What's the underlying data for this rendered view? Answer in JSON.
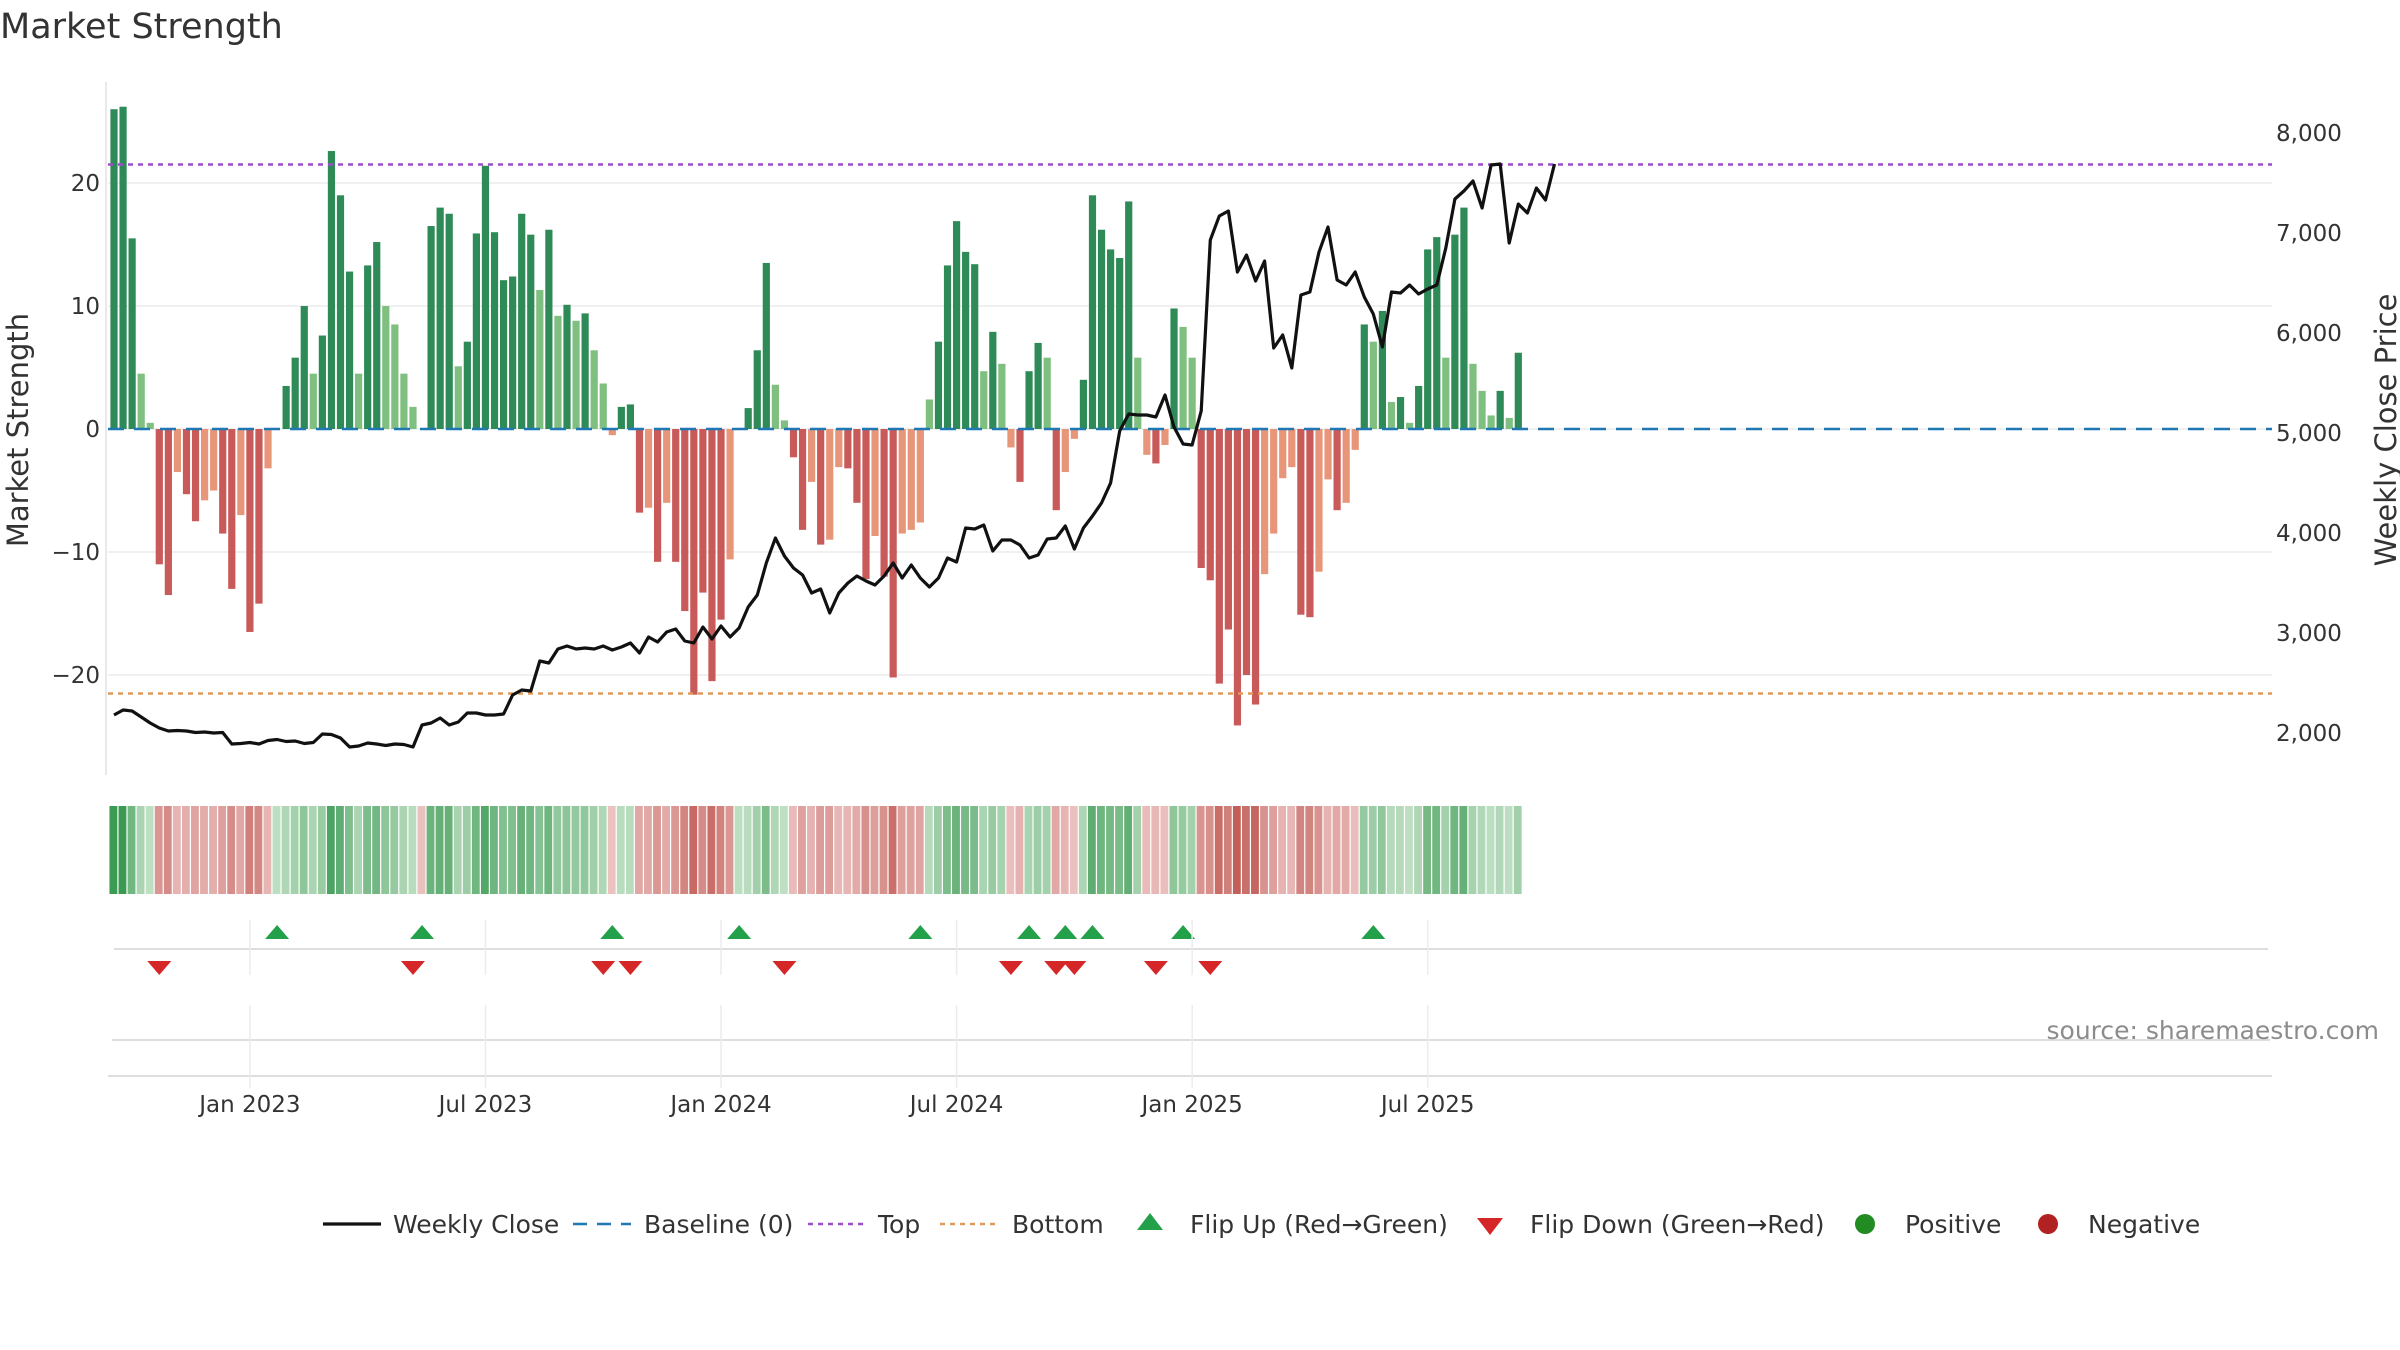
{
  "title": "Market Strength",
  "source": "source: sharemaestro.com",
  "chart_data": {
    "type": "bar",
    "title": "Market Strength",
    "ylabel_left": "Market Strength",
    "ylabel_right": "Weekly Close Price",
    "left_yticks": [
      20,
      10,
      0,
      -10,
      -20
    ],
    "left_ytick_labels": [
      "20",
      "10",
      "0",
      "−10",
      "−20"
    ],
    "left_ylim": [
      -28,
      28
    ],
    "right_yticks": [
      8000,
      7000,
      6000,
      5000,
      4000,
      3000,
      2000
    ],
    "right_ytick_labels": [
      "8,000",
      "7,000",
      "6,000",
      "5,000",
      "4,000",
      "3,000",
      "2,000"
    ],
    "right_ylim": [
      1500,
      8600
    ],
    "x_ticks": [
      "Jan 2023",
      "Jul 2023",
      "Jan 2024",
      "Jul 2024",
      "Jan 2025",
      "Jul 2025"
    ],
    "top_level": 21.5,
    "bottom_level": -21.5,
    "grid": true,
    "legend_position": "bottom",
    "strength_values": [
      26,
      26.2,
      15.5,
      4.5,
      0.5,
      -11,
      -13.5,
      -3.5,
      -5.3,
      -7.5,
      -5.8,
      -5,
      -8.5,
      -13,
      -7,
      -16.5,
      -14.2,
      -3.2,
      0,
      3.5,
      5.8,
      10,
      4.5,
      7.6,
      22.6,
      19,
      12.8,
      4.5,
      13.3,
      15.2,
      10,
      8.5,
      4.5,
      1.8,
      0,
      16.5,
      18,
      17.5,
      5.1,
      7.1,
      15.9,
      21.4,
      16,
      12.1,
      12.4,
      17.5,
      15.8,
      11.3,
      16.2,
      9.2,
      10.1,
      8.8,
      9.4,
      6.4,
      3.7,
      -0.5,
      1.8,
      2,
      -6.8,
      -6.4,
      -10.8,
      -6,
      -10.8,
      -14.8,
      -21.6,
      -13.3,
      -20.5,
      -15.5,
      -10.6,
      0,
      1.7,
      6.4,
      13.5,
      3.6,
      0.7,
      -2.3,
      -8.2,
      -4.3,
      -9.4,
      -9,
      -3.1,
      -3.2,
      -6,
      -12.2,
      -8.7,
      -12,
      -20.2,
      -8.5,
      -8.2,
      -7.6,
      2.4,
      7.1,
      13.3,
      16.9,
      14.4,
      13.4,
      4.7,
      7.9,
      5.3,
      -1.5,
      -4.3,
      4.7,
      7,
      5.8,
      -6.6,
      -3.5,
      -0.8,
      4,
      19,
      16.2,
      14.6,
      13.9,
      18.5,
      5.8,
      -2.1,
      -2.8,
      -1.3,
      9.8,
      8.3,
      5.8,
      -11.3,
      -12.3,
      -20.7,
      -16.3,
      -24.1,
      -20,
      -22.4,
      -11.8,
      -8.5,
      -4,
      -3.1,
      -15.1,
      -15.3,
      -11.6,
      -4.1,
      -6.6,
      -6,
      -1.7,
      8.5,
      7.1,
      9.6,
      2.2,
      2.6,
      0.5,
      3.5,
      14.6,
      15.6,
      5.8,
      15.8,
      18,
      5.3,
      3.1,
      1.1,
      3.1,
      0.9,
      6.2
    ],
    "weekly_close": [
      2180,
      2230,
      2220,
      2160,
      2100,
      2050,
      2020,
      2025,
      2020,
      2005,
      2010,
      2000,
      2005,
      1890,
      1895,
      1905,
      1890,
      1925,
      1935,
      1915,
      1920,
      1895,
      1905,
      1990,
      1985,
      1950,
      1860,
      1870,
      1900,
      1890,
      1875,
      1890,
      1885,
      1860,
      2080,
      2100,
      2150,
      2080,
      2110,
      2200,
      2200,
      2180,
      2180,
      2190,
      2380,
      2430,
      2420,
      2720,
      2700,
      2840,
      2870,
      2840,
      2850,
      2840,
      2870,
      2830,
      2860,
      2900,
      2800,
      2960,
      2910,
      3010,
      3040,
      2920,
      2900,
      3060,
      2940,
      3070,
      2960,
      3050,
      3260,
      3380,
      3700,
      3950,
      3770,
      3650,
      3580,
      3400,
      3440,
      3200,
      3400,
      3500,
      3570,
      3520,
      3480,
      3570,
      3700,
      3550,
      3680,
      3550,
      3460,
      3550,
      3750,
      3710,
      4050,
      4040,
      4080,
      3820,
      3930,
      3930,
      3880,
      3750,
      3780,
      3940,
      3950,
      4070,
      3840,
      4050,
      4170,
      4300,
      4500,
      5020,
      5190,
      5180,
      5180,
      5160,
      5380,
      5060,
      4890,
      4880,
      5220,
      6930,
      7170,
      7220,
      6610,
      6780,
      6520,
      6720,
      5850,
      5980,
      5650,
      6380,
      6410,
      6810,
      7060,
      6530,
      6480,
      6610,
      6360,
      6190,
      5860,
      6410,
      6400,
      6480,
      6390,
      6440,
      6480,
      6850,
      7340,
      7420,
      7520,
      7250,
      7680,
      7690,
      6900,
      7290,
      7200,
      7450,
      7330,
      7690
    ],
    "color_strip_values": [
      26,
      26.2,
      15.5,
      4.5,
      0.5,
      -11,
      -13.5,
      -3.5,
      -5.3,
      -7.5,
      -5.8,
      -5,
      -8.5,
      -13,
      -7,
      -16.5,
      -14.2,
      -3.2,
      1,
      3.5,
      5.8,
      10,
      4.5,
      7.6,
      22.6,
      19,
      12.8,
      4.5,
      13.3,
      15.2,
      10,
      8.5,
      4.5,
      1.8,
      -1,
      16.5,
      18,
      17.5,
      5.1,
      7.1,
      15.9,
      21.4,
      16,
      12.1,
      12.4,
      17.5,
      15.8,
      11.3,
      16.2,
      9.2,
      10.1,
      8.8,
      9.4,
      6.4,
      3.7,
      -0.5,
      1.8,
      2,
      -6.8,
      -6.4,
      -10.8,
      -6,
      -10.8,
      -14.8,
      -21.6,
      -13.3,
      -20.5,
      -15.5,
      -10.6,
      1,
      1.7,
      6.4,
      13.5,
      3.6,
      0.7,
      -2.3,
      -8.2,
      -4.3,
      -9.4,
      -9,
      -3.1,
      -3.2,
      -6,
      -12.2,
      -8.7,
      -12,
      -20.2,
      -8.5,
      -8.2,
      -7.6,
      2.4,
      7.1,
      13.3,
      16.9,
      14.4,
      13.4,
      4.7,
      7.9,
      5.3,
      -1.5,
      -4.3,
      4.7,
      7,
      5.8,
      -6.6,
      -3.5,
      -0.8,
      4,
      19,
      16.2,
      14.6,
      13.9,
      18.5,
      5.8,
      -2.1,
      -2.8,
      -1.3,
      9.8,
      8.3,
      5.8,
      -11.3,
      -12.3,
      -20.7,
      -16.3,
      -24.1,
      -20,
      -22.4,
      -11.8,
      -8.5,
      -4,
      -3.1,
      -15.1,
      -15.3,
      -11.6,
      -4.1,
      -6.6,
      -6,
      -1.7,
      8.5,
      7.1,
      9.6,
      2.2,
      2.6,
      0.5,
      3.5,
      14.6,
      15.6,
      5.8,
      15.8,
      18,
      5.3,
      3.1,
      1.1,
      3.1,
      0.9,
      6.2
    ],
    "flip_up_weeks": [
      18,
      34,
      55,
      69,
      89,
      101,
      105,
      108,
      118,
      139
    ],
    "flip_down_weeks": [
      5,
      33,
      54,
      57,
      74,
      99,
      104,
      106,
      115,
      121
    ],
    "legend": [
      "Weekly Close",
      "Baseline (0)",
      "Top",
      "Bottom",
      "Flip Up (Red→Green)",
      "Flip Down (Green→Red)",
      "Positive",
      "Negative"
    ],
    "colors": {
      "strong_positive": "#2e8b57",
      "weak_positive": "#7fbf7f",
      "strong_negative": "#c85a5a",
      "weak_negative": "#e8967a",
      "line": "#111111",
      "baseline": "#1f77b4",
      "top": "#9b4dca",
      "bottom": "#e09a5a",
      "flip_up": "#23a04a",
      "flip_down": "#d62728",
      "positive_dot": "#228b22",
      "negative_dot": "#b22222"
    }
  }
}
